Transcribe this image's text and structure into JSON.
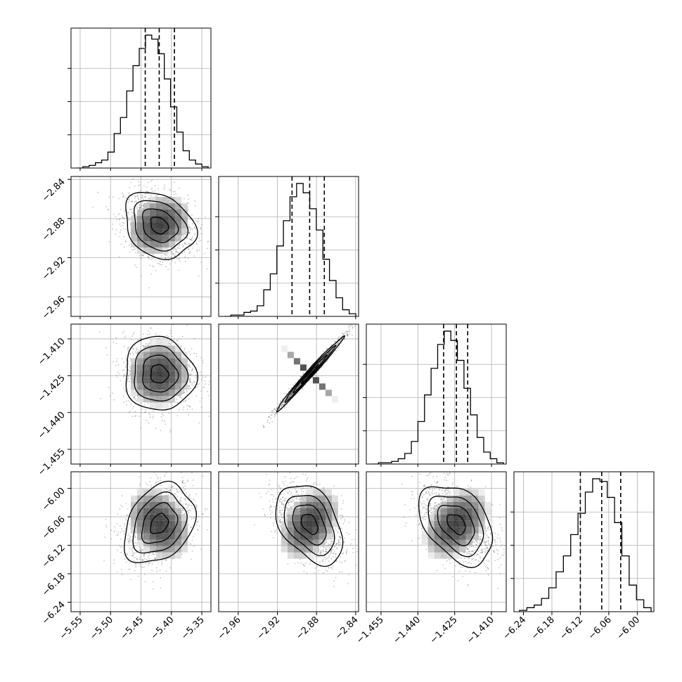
{
  "chart_data": {
    "type": "corner",
    "params": [
      {
        "ticks": [
          -5.55,
          -5.5,
          -5.45,
          -5.4,
          -5.35
        ],
        "tick_labels": [
          "−5.55",
          "−5.50",
          "−5.45",
          "−5.40",
          "−5.35"
        ],
        "range": [
          -5.565,
          -5.335
        ],
        "quantiles": [
          -5.443,
          -5.42,
          -5.395
        ],
        "hist": [
          0,
          1,
          2,
          4,
          6,
          12,
          26,
          38,
          58,
          77,
          90,
          100,
          97,
          86,
          67,
          46,
          27,
          13,
          6,
          3,
          1
        ]
      },
      {
        "ticks": [
          -2.96,
          -2.92,
          -2.88,
          -2.84
        ],
        "tick_labels": [
          "−2.96",
          "−2.92",
          "−2.88",
          "−2.84"
        ],
        "range": [
          -2.98,
          -2.837
        ],
        "quantiles": [
          -2.905,
          -2.887,
          -2.872
        ],
        "hist": [
          0,
          1,
          1,
          3,
          4,
          8,
          20,
          32,
          53,
          72,
          90,
          100,
          93,
          81,
          65,
          43,
          27,
          14,
          5,
          2
        ]
      },
      {
        "ticks": [
          -1.455,
          -1.44,
          -1.425,
          -1.41
        ],
        "tick_labels": [
          "−1.455",
          "−1.440",
          "−1.425",
          "−1.410"
        ],
        "range": [
          -1.461,
          -1.404
        ],
        "quantiles": [
          -1.4295,
          -1.4243,
          -1.4197
        ],
        "hist": [
          0,
          1,
          1,
          2,
          4,
          8,
          17,
          32,
          52,
          72,
          90,
          100,
          93,
          78,
          57,
          37,
          20,
          9,
          4,
          1
        ]
      },
      {
        "ticks": [
          -6.24,
          -6.18,
          -6.12,
          -6.06,
          -6.0
        ],
        "tick_labels": [
          "−6.24",
          "−6.18",
          "−6.12",
          "−6.06",
          "−6.00"
        ],
        "range": [
          -6.26,
          -5.965
        ],
        "quantiles": [
          -6.12,
          -6.075,
          -6.035
        ],
        "hist": [
          1,
          3,
          5,
          10,
          18,
          30,
          42,
          58,
          74,
          90,
          100,
          98,
          86,
          67,
          42,
          20,
          9,
          3
        ]
      }
    ],
    "pairs": [
      {
        "row": 1,
        "col": 0,
        "center": [
          -5.42,
          -2.887
        ],
        "sx": 0.029,
        "sy": 0.017,
        "rho": -0.25
      },
      {
        "row": 2,
        "col": 0,
        "center": [
          -5.42,
          -1.4243
        ],
        "sx": 0.029,
        "sy": 0.0075,
        "rho": -0.05
      },
      {
        "row": 2,
        "col": 1,
        "center": [
          -2.887,
          -1.4243
        ],
        "sx": 0.017,
        "sy": 0.0075,
        "rho": 0.99
      },
      {
        "row": 3,
        "col": 0,
        "center": [
          -5.42,
          -6.075
        ],
        "sx": 0.029,
        "sy": 0.042,
        "rho": 0.3
      },
      {
        "row": 3,
        "col": 1,
        "center": [
          -2.887,
          -6.075
        ],
        "sx": 0.017,
        "sy": 0.042,
        "rho": -0.4
      },
      {
        "row": 3,
        "col": 2,
        "center": [
          -1.4243,
          -6.075
        ],
        "sx": 0.0075,
        "sy": 0.042,
        "rho": -0.4
      }
    ],
    "contour_levels_sigma": [
      0.5,
      1.0,
      1.5,
      2.0
    ],
    "grid": true,
    "colors": {
      "line": "#000000",
      "grid": "#b0b0b0",
      "points": "#555555",
      "frame": "#000000"
    }
  }
}
